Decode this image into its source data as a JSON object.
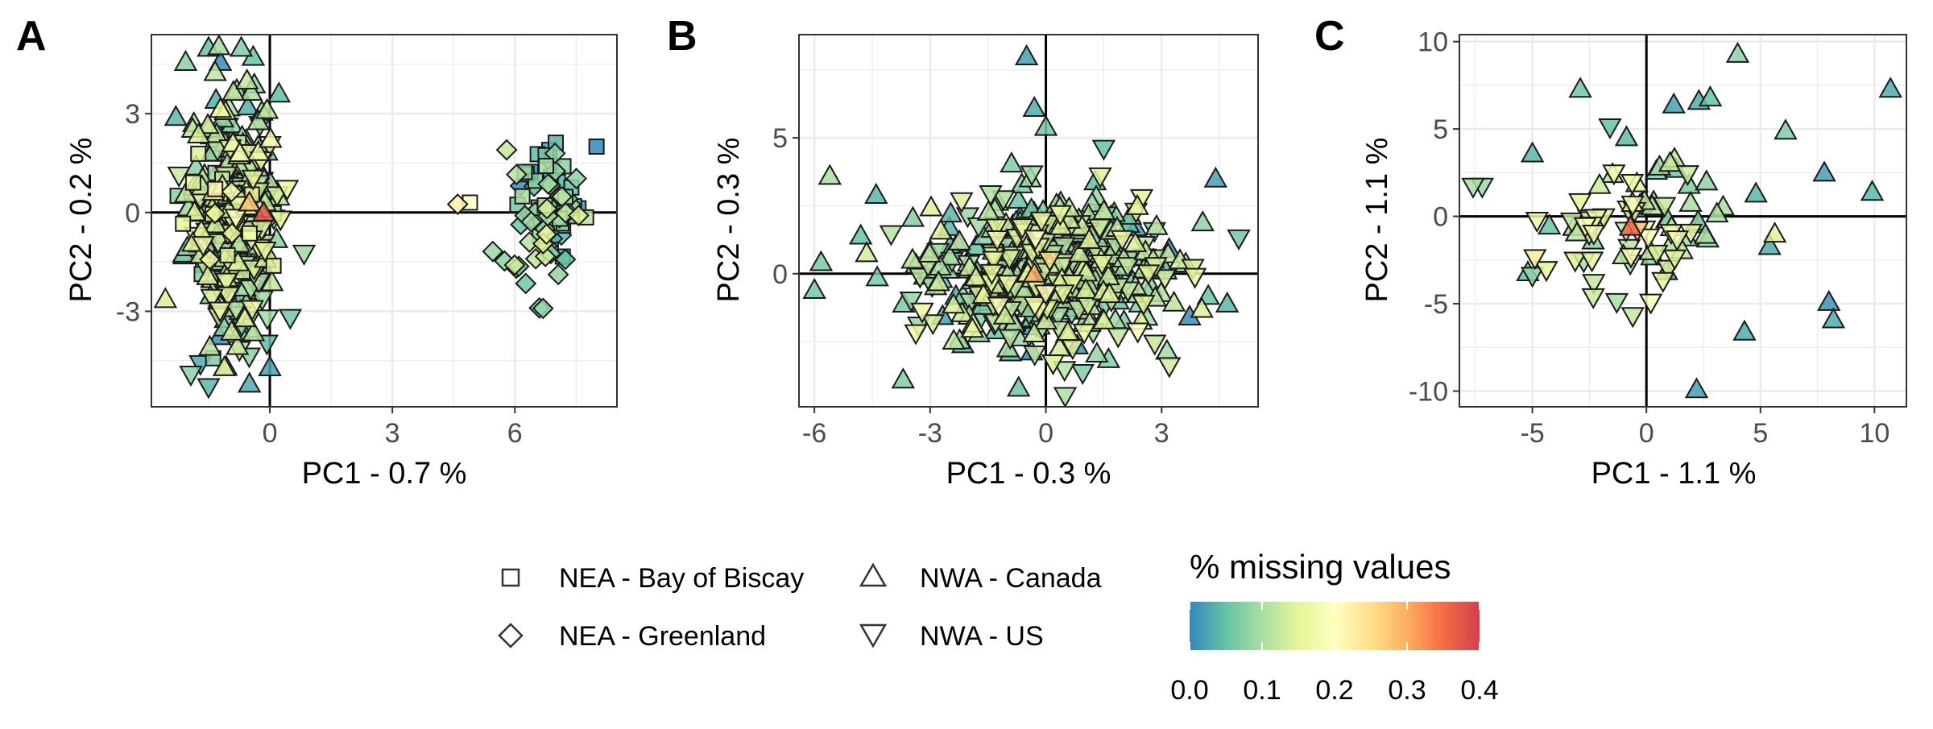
{
  "chart_data": [
    {
      "type": "scatter",
      "panel_label": "A",
      "xlabel": "PC1 - 0.7 %",
      "ylabel": "PC2 - 0.2 %",
      "xlim": [
        -2.9,
        8.5
      ],
      "ylim": [
        -5.9,
        5.4
      ],
      "xticks": [
        0,
        3,
        6
      ],
      "xtick_labels": [
        "0",
        "3",
        "6"
      ],
      "yticks": [
        -3,
        0,
        3
      ],
      "ytick_labels": [
        "-3",
        "0",
        "3"
      ],
      "grid": true,
      "clusters": [
        {
          "group": "NWA - Canada",
          "cx": -0.9,
          "cy": 0.3,
          "sx": 0.55,
          "sy": 1.9,
          "n": 210,
          "mx": 0.09
        },
        {
          "group": "NWA - US",
          "cx": -0.8,
          "cy": -0.6,
          "sx": 0.5,
          "sy": 1.7,
          "n": 110,
          "mx": 0.11
        },
        {
          "group": "NEA - Bay of Biscay",
          "cx": -1.1,
          "cy": 0.4,
          "sx": 0.5,
          "sy": 1.2,
          "n": 40,
          "mx": 0.1
        },
        {
          "group": "NEA - Greenland",
          "cx": -1.0,
          "cy": 0.0,
          "sx": 0.5,
          "sy": 1.2,
          "n": 30,
          "mx": 0.1
        },
        {
          "group": "NEA - Bay of Biscay",
          "cx": 7.0,
          "cy": 0.2,
          "sx": 0.45,
          "sy": 0.9,
          "n": 40,
          "mx": 0.06
        },
        {
          "group": "NEA - Greenland",
          "cx": 6.7,
          "cy": 0.0,
          "sx": 0.5,
          "sy": 1.0,
          "n": 50,
          "mx": 0.08
        }
      ],
      "points": [
        {
          "group": "NEA - Bay of Biscay",
          "x": 8.0,
          "y": 2.0,
          "m": 0.0
        },
        {
          "group": "NEA - Greenland",
          "x": 4.6,
          "y": 0.25,
          "m": 0.22
        },
        {
          "group": "NEA - Bay of Biscay",
          "x": 4.9,
          "y": 0.3,
          "m": 0.2
        },
        {
          "group": "NEA - Greenland",
          "x": 6.6,
          "y": -2.9,
          "m": 0.06
        },
        {
          "group": "NEA - Greenland",
          "x": 5.8,
          "y": 1.9,
          "m": 0.12
        },
        {
          "group": "NWA - Canada",
          "x": -1.5,
          "y": 5.0,
          "m": 0.05
        },
        {
          "group": "NWA - Canada",
          "x": -0.7,
          "y": 5.0,
          "m": 0.07
        },
        {
          "group": "NWA - Canada",
          "x": -2.3,
          "y": 2.9,
          "m": 0.04
        },
        {
          "group": "NWA - Canada",
          "x": 0.0,
          "y": -4.7,
          "m": 0.02
        },
        {
          "group": "NWA - Canada",
          "x": -0.5,
          "y": -5.2,
          "m": 0.03
        },
        {
          "group": "NWA - US",
          "x": -1.7,
          "y": -4.6,
          "m": 0.03
        },
        {
          "group": "NWA - US",
          "x": -1.5,
          "y": -5.3,
          "m": 0.04
        },
        {
          "group": "NWA - US",
          "x": 0.5,
          "y": -3.2,
          "m": 0.06
        },
        {
          "group": "NWA - Canada",
          "x": -0.15,
          "y": 0.0,
          "m": 0.37
        },
        {
          "group": "NWA - Canada",
          "x": -0.5,
          "y": 0.3,
          "m": 0.28
        }
      ]
    },
    {
      "type": "scatter",
      "panel_label": "B",
      "xlabel": "PC1 - 0.3 %",
      "ylabel": "PC2 - 0.3 %",
      "xlim": [
        -6.4,
        5.5
      ],
      "ylim": [
        -4.9,
        8.8
      ],
      "xticks": [
        -6,
        -3,
        0,
        3
      ],
      "xtick_labels": [
        "-6",
        "-3",
        "0",
        "3"
      ],
      "yticks": [
        0,
        5
      ],
      "ytick_labels": [
        "0",
        "5"
      ],
      "grid": true,
      "clusters": [
        {
          "group": "NWA - Canada",
          "cx": 0.0,
          "cy": 0.2,
          "sx": 1.55,
          "sy": 1.4,
          "n": 330,
          "mx": 0.08
        },
        {
          "group": "NWA - US",
          "cx": 0.2,
          "cy": -0.2,
          "sx": 1.4,
          "sy": 1.3,
          "n": 180,
          "mx": 0.11
        }
      ],
      "points": [
        {
          "group": "NWA - Canada",
          "x": -0.5,
          "y": 8.0,
          "m": 0.02
        },
        {
          "group": "NWA - Canada",
          "x": -0.3,
          "y": 6.1,
          "m": 0.03
        },
        {
          "group": "NWA - Canada",
          "x": 0.0,
          "y": 5.4,
          "m": 0.06
        },
        {
          "group": "NWA - Canada",
          "x": -5.6,
          "y": 3.6,
          "m": 0.1
        },
        {
          "group": "NWA - Canada",
          "x": -6.0,
          "y": -0.6,
          "m": 0.06
        },
        {
          "group": "NWA - Canada",
          "x": -3.7,
          "y": -3.9,
          "m": 0.07
        },
        {
          "group": "NWA - Canada",
          "x": -4.4,
          "y": 2.9,
          "m": 0.04
        },
        {
          "group": "NWA - Canada",
          "x": -4.8,
          "y": 1.4,
          "m": 0.05
        },
        {
          "group": "NWA - Canada",
          "x": 4.4,
          "y": 3.5,
          "m": 0.02
        },
        {
          "group": "NWA - US",
          "x": 5.0,
          "y": 1.3,
          "m": 0.06
        },
        {
          "group": "NWA - Canada",
          "x": 4.7,
          "y": -1.1,
          "m": 0.04
        },
        {
          "group": "NWA - US",
          "x": 3.2,
          "y": -3.4,
          "m": 0.13
        },
        {
          "group": "NWA - US",
          "x": 0.5,
          "y": -4.5,
          "m": 0.1
        },
        {
          "group": "NWA - US",
          "x": 1.5,
          "y": 4.6,
          "m": 0.05
        },
        {
          "group": "NWA - Canada",
          "x": -0.3,
          "y": 0.0,
          "m": 0.3
        },
        {
          "group": "NWA - US",
          "x": 0.1,
          "y": 0.5,
          "m": 0.25
        }
      ]
    },
    {
      "type": "scatter",
      "panel_label": "C",
      "xlabel": "PC1 - 1.1 %",
      "ylabel": "PC2 - 1.1 %",
      "xlim": [
        -8.2,
        11.4
      ],
      "ylim": [
        -10.9,
        10.4
      ],
      "xticks": [
        -5,
        0,
        5,
        10
      ],
      "xtick_labels": [
        "-5",
        "0",
        "5",
        "10"
      ],
      "yticks": [
        -10,
        -5,
        0,
        5,
        10
      ],
      "ytick_labels": [
        "-10",
        "-5",
        "0",
        "5",
        "10"
      ],
      "grid": true,
      "clusters": [
        {
          "group": "NWA - Canada",
          "cx": 0.2,
          "cy": -0.5,
          "sx": 1.9,
          "sy": 1.8,
          "n": 40,
          "mx": 0.08
        },
        {
          "group": "NWA - US",
          "cx": -1.6,
          "cy": -0.8,
          "sx": 1.7,
          "sy": 1.6,
          "n": 40,
          "mx": 0.14
        }
      ],
      "points": [
        {
          "group": "NWA - Canada",
          "x": 10.7,
          "y": 7.3,
          "m": 0.03
        },
        {
          "group": "NWA - Canada",
          "x": 4.0,
          "y": 9.3,
          "m": 0.08
        },
        {
          "group": "NWA - Canada",
          "x": 2.3,
          "y": 6.6,
          "m": 0.03
        },
        {
          "group": "NWA - Canada",
          "x": 2.8,
          "y": 6.8,
          "m": 0.05
        },
        {
          "group": "NWA - Canada",
          "x": 1.2,
          "y": 6.4,
          "m": 0.02
        },
        {
          "group": "NWA - Canada",
          "x": 6.1,
          "y": 4.9,
          "m": 0.07
        },
        {
          "group": "NWA - Canada",
          "x": 7.8,
          "y": 2.5,
          "m": 0.02
        },
        {
          "group": "NWA - Canada",
          "x": 9.9,
          "y": 1.4,
          "m": 0.04
        },
        {
          "group": "NWA - Canada",
          "x": -2.9,
          "y": 7.3,
          "m": 0.06
        },
        {
          "group": "NWA - Canada",
          "x": -5.0,
          "y": 3.6,
          "m": 0.04
        },
        {
          "group": "NWA - US",
          "x": -7.6,
          "y": 1.7,
          "m": 0.1
        },
        {
          "group": "NWA - US",
          "x": -7.2,
          "y": 1.7,
          "m": 0.09
        },
        {
          "group": "NWA - Canada",
          "x": 8.0,
          "y": -4.9,
          "m": 0.01
        },
        {
          "group": "NWA - Canada",
          "x": 8.2,
          "y": -5.9,
          "m": 0.03
        },
        {
          "group": "NWA - Canada",
          "x": 2.2,
          "y": -9.9,
          "m": 0.02
        },
        {
          "group": "NWA - Canada",
          "x": 5.4,
          "y": -1.7,
          "m": 0.03
        },
        {
          "group": "NWA - Canada",
          "x": 4.3,
          "y": -6.6,
          "m": 0.03
        },
        {
          "group": "NWA - Canada",
          "x": 4.8,
          "y": 1.3,
          "m": 0.04
        },
        {
          "group": "NWA - Canada",
          "x": -5.2,
          "y": -3.2,
          "m": 0.05
        },
        {
          "group": "NWA - US",
          "x": -5.0,
          "y": -3.4,
          "m": 0.08
        },
        {
          "group": "NWA - US",
          "x": -0.6,
          "y": -5.7,
          "m": 0.12
        },
        {
          "group": "NWA - US",
          "x": -1.3,
          "y": -4.9,
          "m": 0.1
        },
        {
          "group": "NWA - Canada",
          "x": -0.7,
          "y": -0.6,
          "m": 0.36
        },
        {
          "group": "NWA - US",
          "x": -0.4,
          "y": -0.8,
          "m": 0.28
        },
        {
          "group": "NWA - US",
          "x": -1.6,
          "y": 5.1,
          "m": 0.05
        }
      ]
    }
  ],
  "legend": {
    "shape_items": [
      {
        "label": "NEA - Bay of Biscay",
        "shape": "square"
      },
      {
        "label": "NEA - Greenland",
        "shape": "diamond"
      },
      {
        "label": "NWA - Canada",
        "shape": "triangle-up"
      },
      {
        "label": "NWA - US",
        "shape": "triangle-down"
      }
    ],
    "colorbar_title": "% missing values",
    "colorbar_ticks": [
      "0.0",
      "0.1",
      "0.2",
      "0.3",
      "0.4"
    ],
    "colorbar_range": [
      0,
      0.4
    ],
    "colorbar_stops": [
      "#3288bd",
      "#66c2a5",
      "#abdda4",
      "#e6f598",
      "#ffffbf",
      "#fee08b",
      "#fdae61",
      "#f46d43",
      "#d53e4f"
    ]
  }
}
